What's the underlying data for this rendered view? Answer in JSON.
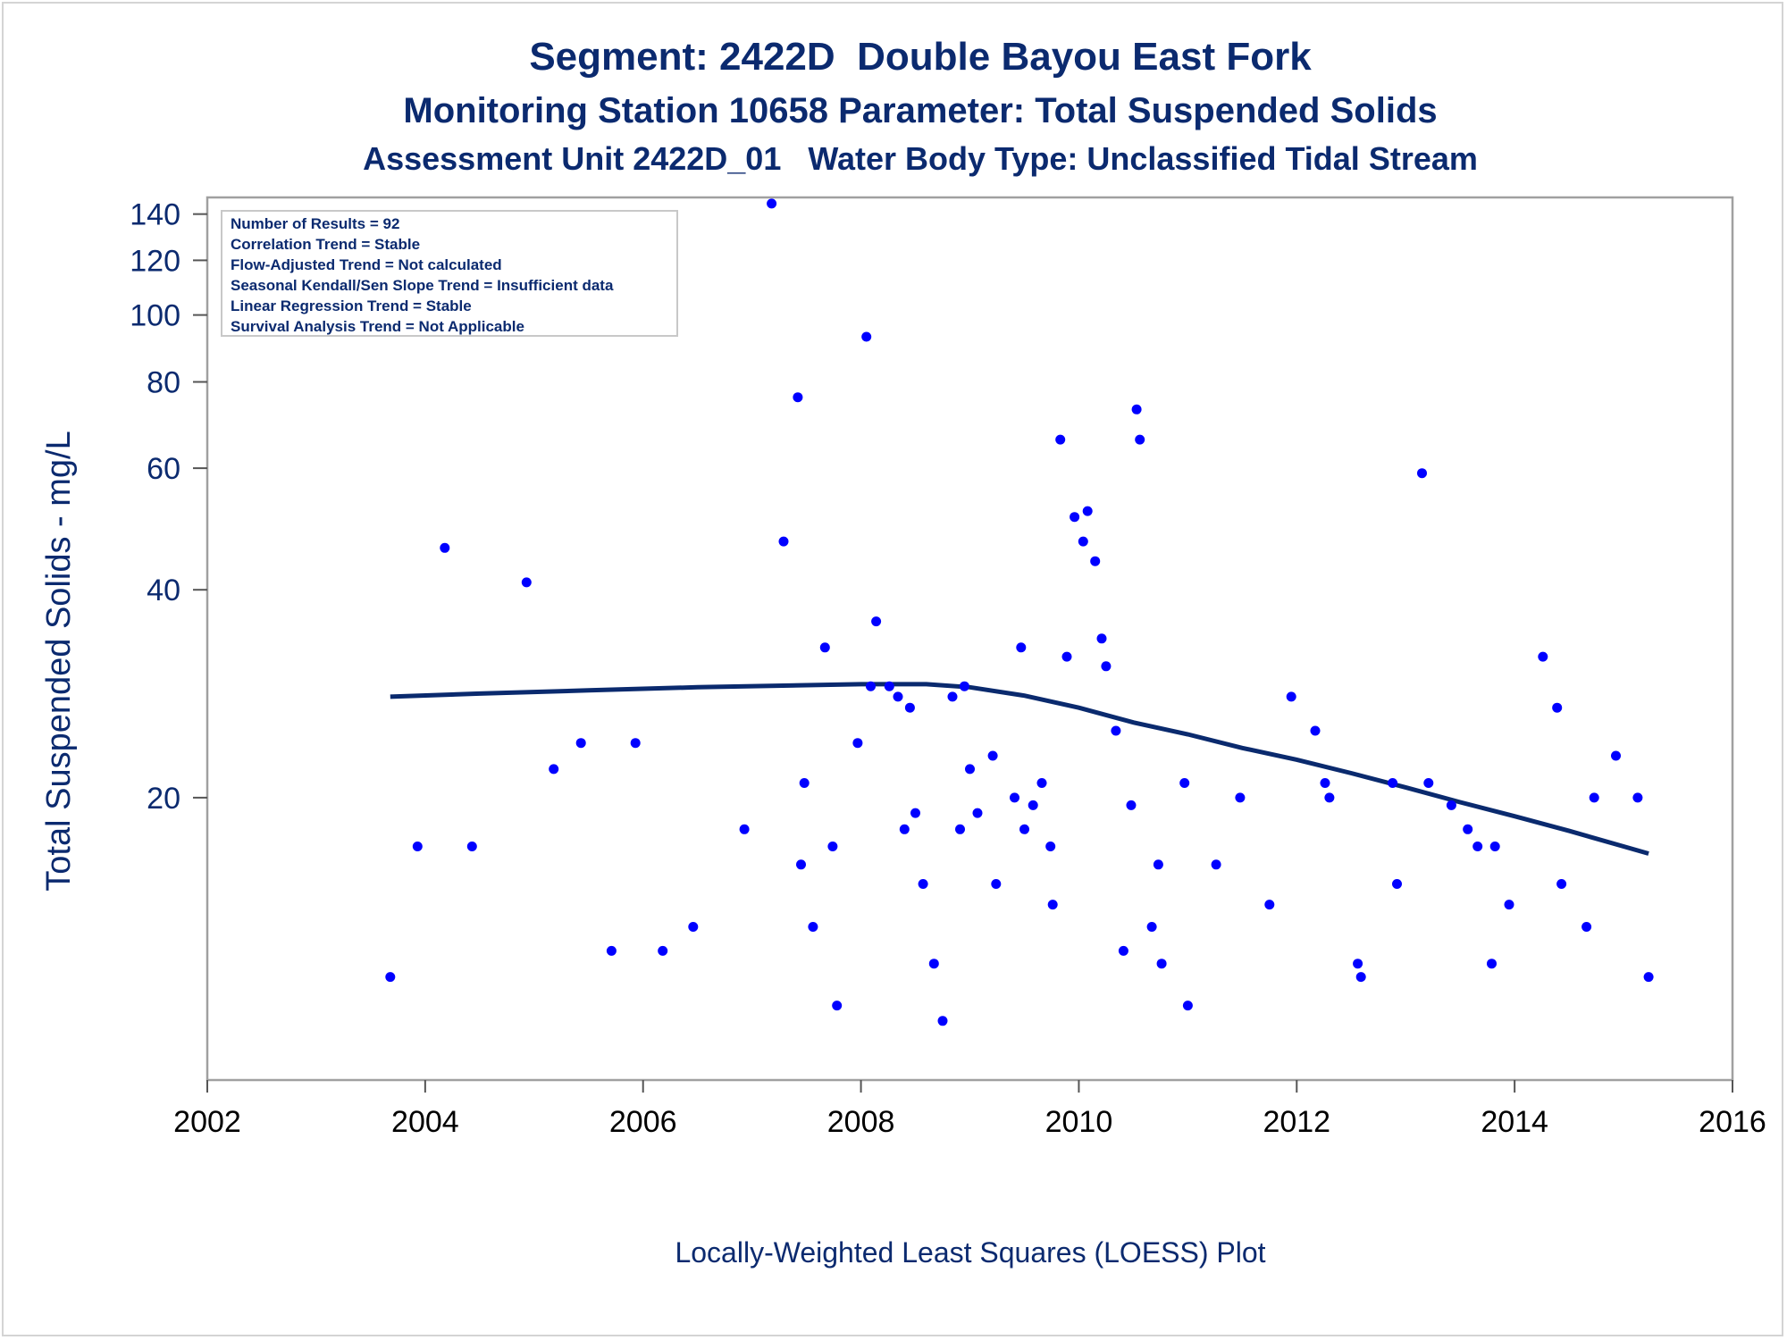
{
  "chart_data": {
    "type": "scatter",
    "title": "Segment: 2422D  Double Bayou East Fork",
    "subtitle": "Monitoring Station 10658 Parameter: Total Suspended Solids",
    "subtitle2": "Assessment Unit 2422D_01   Water Body Type: Unclassified Tidal Stream",
    "xlabel": "",
    "ylabel": "Total Suspended Solids - mg/L",
    "footnote": "Locally-Weighted Least Squares (LOESS) Plot",
    "y_scale": "log",
    "xlim": [
      2002,
      2016
    ],
    "ylim": [
      7.8,
      148
    ],
    "x_ticks": [
      2002,
      2004,
      2006,
      2008,
      2010,
      2012,
      2014,
      2016
    ],
    "y_ticks": [
      20,
      40,
      60,
      80,
      100,
      120,
      140
    ],
    "grid": false,
    "legend": "none",
    "colors": {
      "points": "#0000ff",
      "loess": "#0a2a6e",
      "text": "#0b2a6f",
      "frame": "#a0a0a0"
    },
    "stats_box": [
      "Number of Results = 92",
      "Correlation Trend = Stable",
      "Flow-Adjusted Trend = Not calculated",
      "Seasonal Kendall/Sen Slope Trend = Insufficient data",
      "Linear Regression Trend = Stable",
      "Survival Analysis Trend = Not Applicable"
    ],
    "points": [
      [
        2003.68,
        11
      ],
      [
        2003.93,
        17
      ],
      [
        2004.18,
        46
      ],
      [
        2004.43,
        17
      ],
      [
        2004.93,
        41
      ],
      [
        2005.18,
        22
      ],
      [
        2005.43,
        24
      ],
      [
        2005.71,
        12
      ],
      [
        2005.93,
        24
      ],
      [
        2006.18,
        12
      ],
      [
        2006.46,
        13
      ],
      [
        2006.93,
        18
      ],
      [
        2007.18,
        145
      ],
      [
        2007.29,
        47
      ],
      [
        2007.42,
        76
      ],
      [
        2007.45,
        16
      ],
      [
        2007.48,
        21
      ],
      [
        2007.56,
        13
      ],
      [
        2007.67,
        33
      ],
      [
        2007.74,
        17
      ],
      [
        2007.78,
        10
      ],
      [
        2007.97,
        24
      ],
      [
        2008.05,
        93
      ],
      [
        2008.09,
        29
      ],
      [
        2008.14,
        36
      ],
      [
        2008.26,
        29
      ],
      [
        2008.34,
        28
      ],
      [
        2008.4,
        18
      ],
      [
        2008.45,
        27
      ],
      [
        2008.5,
        19
      ],
      [
        2008.57,
        15
      ],
      [
        2008.67,
        11.5
      ],
      [
        2008.75,
        9.5
      ],
      [
        2008.84,
        28
      ],
      [
        2008.91,
        18
      ],
      [
        2008.95,
        29
      ],
      [
        2009.0,
        22
      ],
      [
        2009.07,
        19
      ],
      [
        2009.21,
        23
      ],
      [
        2009.24,
        15
      ],
      [
        2009.41,
        20
      ],
      [
        2009.47,
        33
      ],
      [
        2009.5,
        18
      ],
      [
        2009.58,
        19.5
      ],
      [
        2009.66,
        21
      ],
      [
        2009.74,
        17
      ],
      [
        2009.76,
        14
      ],
      [
        2009.83,
        66
      ],
      [
        2009.89,
        32
      ],
      [
        2009.96,
        51
      ],
      [
        2010.04,
        47
      ],
      [
        2010.08,
        52
      ],
      [
        2010.15,
        44
      ],
      [
        2010.21,
        34
      ],
      [
        2010.25,
        31
      ],
      [
        2010.34,
        25
      ],
      [
        2010.41,
        12
      ],
      [
        2010.48,
        19.5
      ],
      [
        2010.53,
        73
      ],
      [
        2010.56,
        66
      ],
      [
        2010.67,
        13
      ],
      [
        2010.73,
        16
      ],
      [
        2010.76,
        11.5
      ],
      [
        2010.97,
        21
      ],
      [
        2011.0,
        10
      ],
      [
        2011.26,
        16
      ],
      [
        2011.48,
        20
      ],
      [
        2011.75,
        14
      ],
      [
        2011.95,
        28
      ],
      [
        2012.17,
        25
      ],
      [
        2012.26,
        21
      ],
      [
        2012.3,
        20
      ],
      [
        2012.56,
        11.5
      ],
      [
        2012.59,
        11
      ],
      [
        2012.88,
        21
      ],
      [
        2012.92,
        15
      ],
      [
        2013.15,
        59
      ],
      [
        2013.21,
        21
      ],
      [
        2013.42,
        19.5
      ],
      [
        2013.57,
        18
      ],
      [
        2013.66,
        17
      ],
      [
        2013.79,
        11.5
      ],
      [
        2013.82,
        17
      ],
      [
        2013.95,
        14
      ],
      [
        2014.26,
        32
      ],
      [
        2014.39,
        27
      ],
      [
        2014.43,
        15
      ],
      [
        2014.66,
        13
      ],
      [
        2014.73,
        20
      ],
      [
        2014.93,
        23
      ],
      [
        2015.13,
        20
      ],
      [
        2015.23,
        11
      ]
    ],
    "loess": [
      [
        2003.68,
        28.0
      ],
      [
        2004.5,
        28.3
      ],
      [
        2005.5,
        28.6
      ],
      [
        2006.5,
        28.9
      ],
      [
        2007.5,
        29.1
      ],
      [
        2008.0,
        29.2
      ],
      [
        2008.6,
        29.2
      ],
      [
        2009.0,
        28.9
      ],
      [
        2009.5,
        28.1
      ],
      [
        2010.0,
        27.0
      ],
      [
        2010.5,
        25.7
      ],
      [
        2011.0,
        24.7
      ],
      [
        2011.5,
        23.6
      ],
      [
        2012.0,
        22.7
      ],
      [
        2012.5,
        21.7
      ],
      [
        2013.0,
        20.7
      ],
      [
        2013.5,
        19.7
      ],
      [
        2014.0,
        18.8
      ],
      [
        2014.5,
        17.9
      ],
      [
        2015.0,
        17.0
      ],
      [
        2015.23,
        16.6
      ]
    ]
  }
}
